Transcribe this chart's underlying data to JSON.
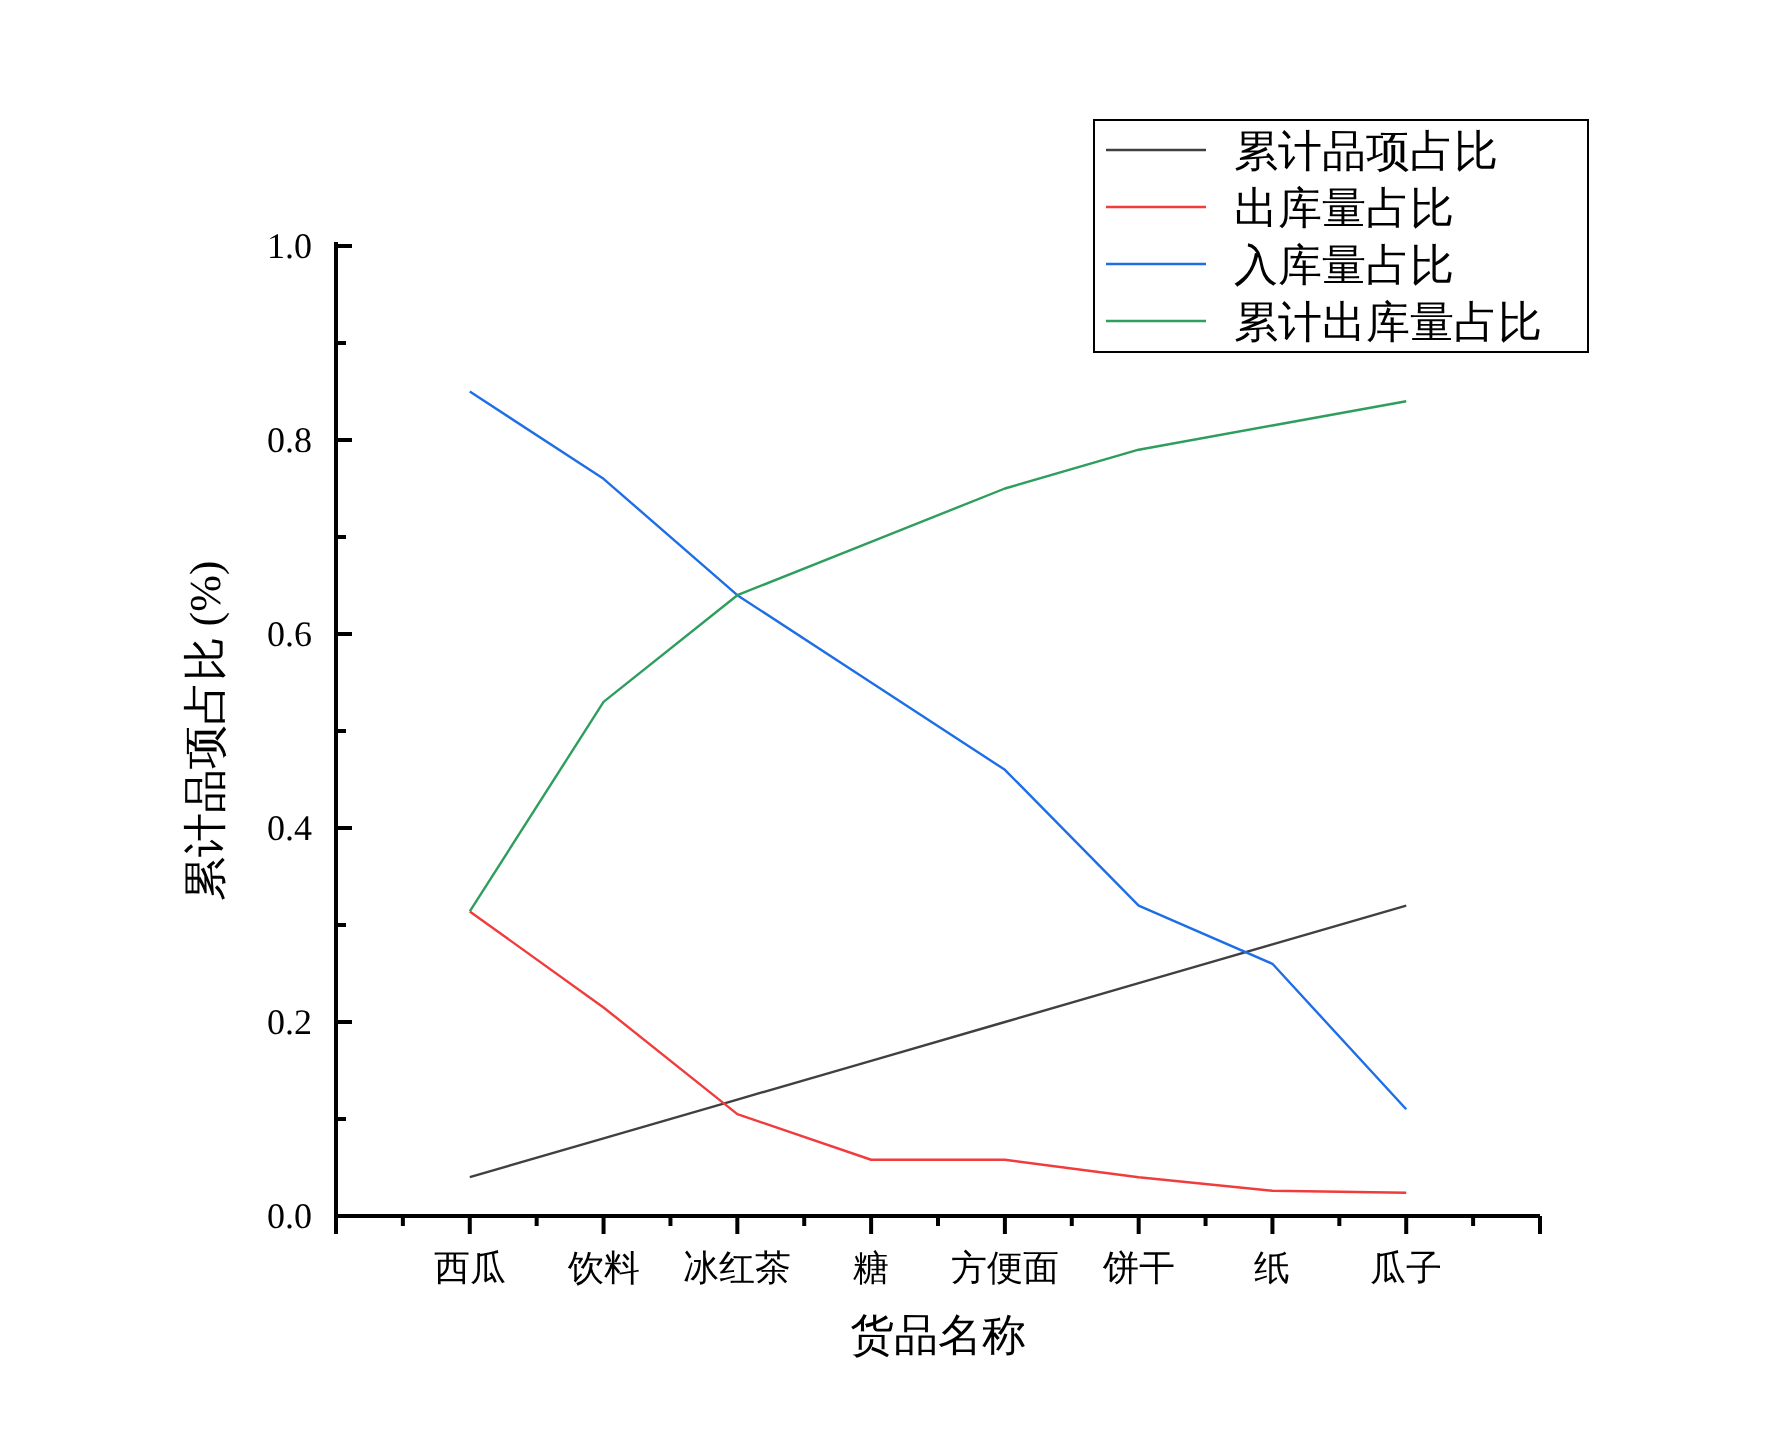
{
  "chart_data": {
    "type": "line",
    "xlabel": "货品名称",
    "ylabel": "累计品项占比 (%)",
    "categories": [
      "西瓜",
      "饮料",
      "冰红茶",
      "糖",
      "方便面",
      "饼干",
      "纸",
      "瓜子"
    ],
    "series": [
      {
        "name": "累计品项占比",
        "color": "#404040",
        "values": [
          0.04,
          0.08,
          0.12,
          0.16,
          0.2,
          0.24,
          0.28,
          0.32
        ]
      },
      {
        "name": "出库量占比",
        "color": "#f03c3c",
        "values": [
          0.314,
          0.215,
          0.105,
          0.058,
          0.058,
          0.04,
          0.026,
          0.024
        ]
      },
      {
        "name": "入库量占比",
        "color": "#1e6ee6",
        "values": [
          0.85,
          0.76,
          0.64,
          0.55,
          0.46,
          0.32,
          0.26,
          0.11
        ]
      },
      {
        "name": "累计出库量占比",
        "color": "#2e9e5e",
        "values": [
          0.314,
          0.53,
          0.64,
          0.695,
          0.75,
          0.79,
          0.815,
          0.84
        ]
      }
    ],
    "ylim": [
      0,
      1
    ],
    "yticks": [
      {
        "value": 0,
        "label": "0.0"
      },
      {
        "value": 0.2,
        "label": "0.2"
      },
      {
        "value": 0.4,
        "label": "0.4"
      },
      {
        "value": 0.6,
        "label": "0.6"
      },
      {
        "value": 0.8,
        "label": "0.8"
      },
      {
        "value": 1,
        "label": "1.0"
      }
    ],
    "legend": "top right",
    "marker": "none",
    "line_style": "solid"
  }
}
